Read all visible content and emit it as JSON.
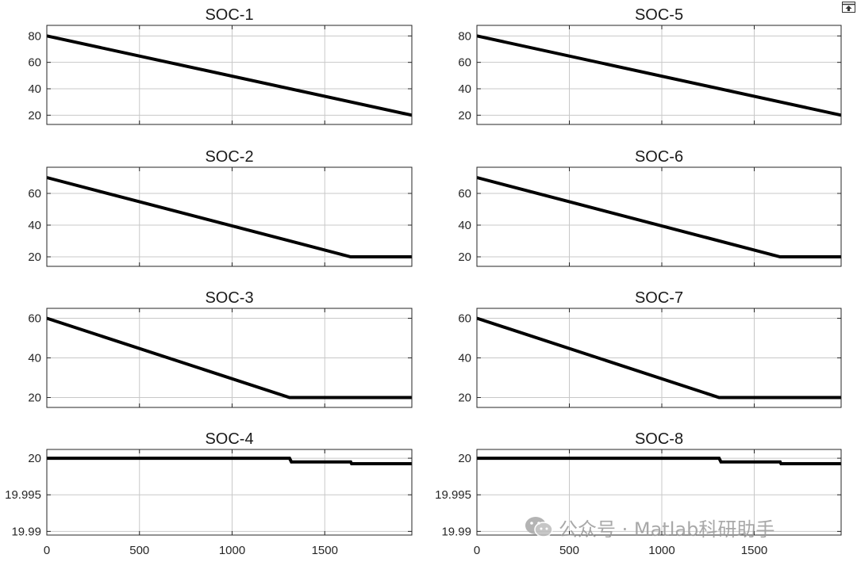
{
  "toolbar": {
    "icon": "export-icon"
  },
  "watermark": {
    "icon": "wechat-icon",
    "text": "公众号 · Matlab科研助手"
  },
  "chart_data": [
    {
      "type": "line",
      "title": "SOC-1",
      "xlim": [
        0,
        1970
      ],
      "ylim": [
        13,
        88
      ],
      "xticks": [
        0,
        500,
        1000,
        1500
      ],
      "yticks": [
        20,
        40,
        60,
        80
      ],
      "show_xtick_labels": false,
      "grid": true,
      "series": [
        {
          "x": [
            0,
            1970
          ],
          "y": [
            80,
            20
          ],
          "color": "#000000"
        }
      ]
    },
    {
      "type": "line",
      "title": "SOC-2",
      "xlim": [
        0,
        1970
      ],
      "ylim": [
        14,
        76.5
      ],
      "xticks": [
        0,
        500,
        1000,
        1500
      ],
      "yticks": [
        20,
        40,
        60
      ],
      "show_xtick_labels": false,
      "grid": true,
      "series": [
        {
          "x": [
            0,
            1640,
            1970
          ],
          "y": [
            70,
            20,
            20
          ],
          "color": "#000000"
        }
      ]
    },
    {
      "type": "line",
      "title": "SOC-3",
      "xlim": [
        0,
        1970
      ],
      "ylim": [
        15,
        65
      ],
      "xticks": [
        0,
        500,
        1000,
        1500
      ],
      "yticks": [
        20,
        40,
        60
      ],
      "show_xtick_labels": false,
      "grid": true,
      "series": [
        {
          "x": [
            0,
            1310,
            1970
          ],
          "y": [
            60,
            20,
            20
          ],
          "color": "#000000"
        }
      ]
    },
    {
      "type": "line",
      "title": "SOC-4",
      "xlim": [
        0,
        1970
      ],
      "ylim": [
        19.9895,
        20.0012
      ],
      "xticks": [
        0,
        500,
        1000,
        1500
      ],
      "yticks": [
        19.99,
        19.995,
        20
      ],
      "ytick_labels": [
        "19.99",
        "19.995",
        "20"
      ],
      "xtick_labels": [
        "0",
        "500",
        "1000",
        "1500"
      ],
      "show_xtick_labels": true,
      "grid": true,
      "series": [
        {
          "x": [
            0,
            1310,
            1320,
            1640,
            1645,
            1970
          ],
          "y": [
            20,
            20,
            19.9995,
            19.9995,
            19.99925,
            19.99925
          ],
          "color": "#000000"
        }
      ]
    },
    {
      "type": "line",
      "title": "SOC-5",
      "xlim": [
        0,
        1970
      ],
      "ylim": [
        13,
        88
      ],
      "xticks": [
        0,
        500,
        1000,
        1500
      ],
      "yticks": [
        20,
        40,
        60,
        80
      ],
      "show_xtick_labels": false,
      "grid": true,
      "series": [
        {
          "x": [
            0,
            1970
          ],
          "y": [
            80,
            20
          ],
          "color": "#000000"
        }
      ]
    },
    {
      "type": "line",
      "title": "SOC-6",
      "xlim": [
        0,
        1970
      ],
      "ylim": [
        14,
        76.5
      ],
      "xticks": [
        0,
        500,
        1000,
        1500
      ],
      "yticks": [
        20,
        40,
        60
      ],
      "show_xtick_labels": false,
      "grid": true,
      "series": [
        {
          "x": [
            0,
            1640,
            1970
          ],
          "y": [
            70,
            20,
            20
          ],
          "color": "#000000"
        }
      ]
    },
    {
      "type": "line",
      "title": "SOC-7",
      "xlim": [
        0,
        1970
      ],
      "ylim": [
        15,
        65
      ],
      "xticks": [
        0,
        500,
        1000,
        1500
      ],
      "yticks": [
        20,
        40,
        60
      ],
      "show_xtick_labels": false,
      "grid": true,
      "series": [
        {
          "x": [
            0,
            1310,
            1970
          ],
          "y": [
            60,
            20,
            20
          ],
          "color": "#000000"
        }
      ]
    },
    {
      "type": "line",
      "title": "SOC-8",
      "xlim": [
        0,
        1970
      ],
      "ylim": [
        19.9895,
        20.0012
      ],
      "xticks": [
        0,
        500,
        1000,
        1500
      ],
      "yticks": [
        19.99,
        19.995,
        20
      ],
      "ytick_labels": [
        "19.99",
        "19.995",
        "20"
      ],
      "xtick_labels": [
        "0",
        "500",
        "1000",
        "1500"
      ],
      "show_xtick_labels": true,
      "grid": true,
      "series": [
        {
          "x": [
            0,
            1310,
            1320,
            1640,
            1645,
            1970
          ],
          "y": [
            20,
            20,
            19.9995,
            19.9995,
            19.99925,
            19.99925
          ],
          "color": "#000000"
        }
      ]
    }
  ]
}
